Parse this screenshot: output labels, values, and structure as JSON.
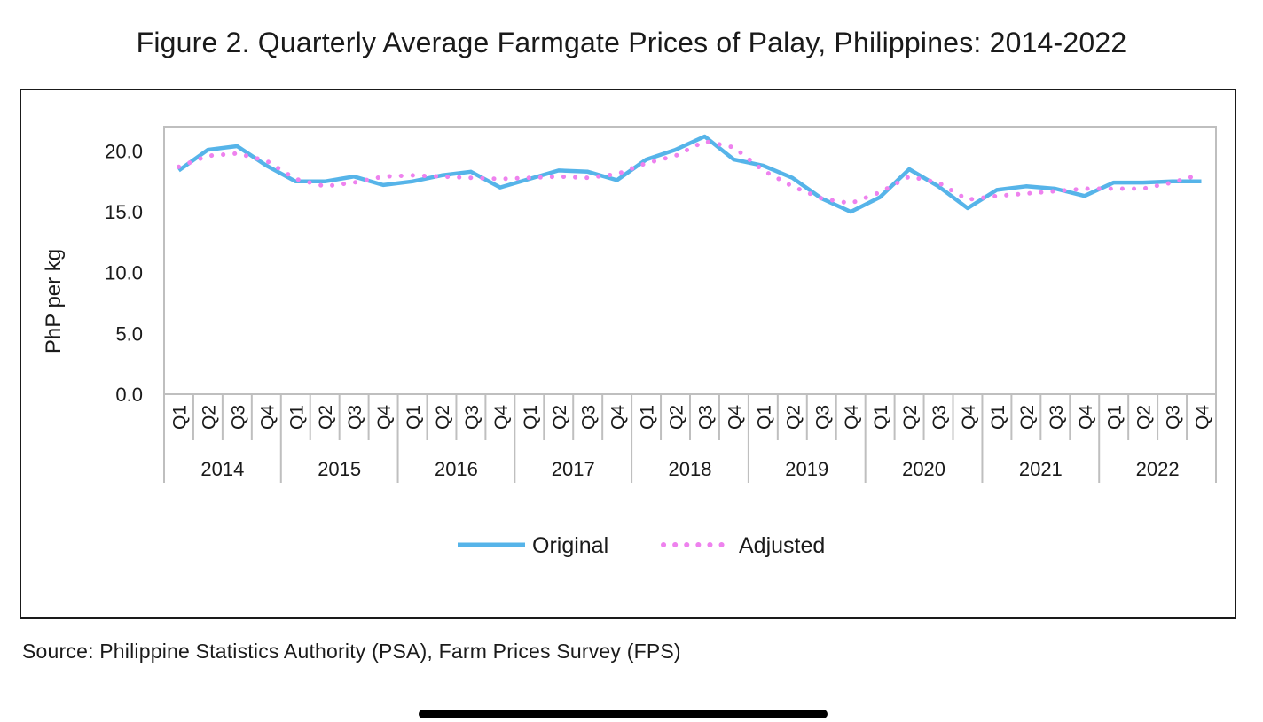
{
  "title": "Figure 2. Quarterly Average Farmgate Prices of Palay, Philippines: 2014-2022",
  "source": "Source: Philippine Statistics Authority (PSA), Farm Prices Survey (FPS)",
  "colors": {
    "original": "#56b4e9",
    "adjusted": "#ee82ee",
    "axis": "#bfbfbf",
    "text": "#1a1a1a"
  },
  "chart_data": {
    "type": "line",
    "title": "Figure 2. Quarterly Average Farmgate Prices of Palay, Philippines: 2014-2022",
    "xlabel": "",
    "ylabel": "PhP per kg",
    "ylim": [
      0,
      22
    ],
    "yticks": [
      "0.0",
      "5.0",
      "10.0",
      "15.0",
      "20.0"
    ],
    "quarters": [
      "Q1",
      "Q2",
      "Q3",
      "Q4"
    ],
    "years": [
      "2014",
      "2015",
      "2016",
      "2017",
      "2018",
      "2019",
      "2020",
      "2021",
      "2022"
    ],
    "grid": false,
    "legend_position": "bottom",
    "series": [
      {
        "name": "Original",
        "style": "solid",
        "values": [
          18.4,
          20.1,
          20.4,
          18.8,
          17.5,
          17.5,
          17.9,
          17.2,
          17.5,
          18.0,
          18.3,
          17.0,
          17.7,
          18.4,
          18.3,
          17.6,
          19.3,
          20.1,
          21.2,
          19.3,
          18.8,
          17.8,
          16.1,
          15.0,
          16.2,
          18.5,
          17.1,
          15.3,
          16.8,
          17.1,
          16.9,
          16.3,
          17.4,
          17.4,
          17.5,
          17.5
        ]
      },
      {
        "name": "Adjusted",
        "style": "dotted",
        "values": [
          18.7,
          19.6,
          19.8,
          19.2,
          17.7,
          17.1,
          17.4,
          17.9,
          18.0,
          17.9,
          17.8,
          17.7,
          17.8,
          17.9,
          17.8,
          18.1,
          19.0,
          19.6,
          20.8,
          20.3,
          18.4,
          17.1,
          16.1,
          15.7,
          16.6,
          17.9,
          17.4,
          16.0,
          16.3,
          16.5,
          16.7,
          16.9,
          16.9,
          16.9,
          17.4,
          18.1
        ]
      }
    ]
  }
}
